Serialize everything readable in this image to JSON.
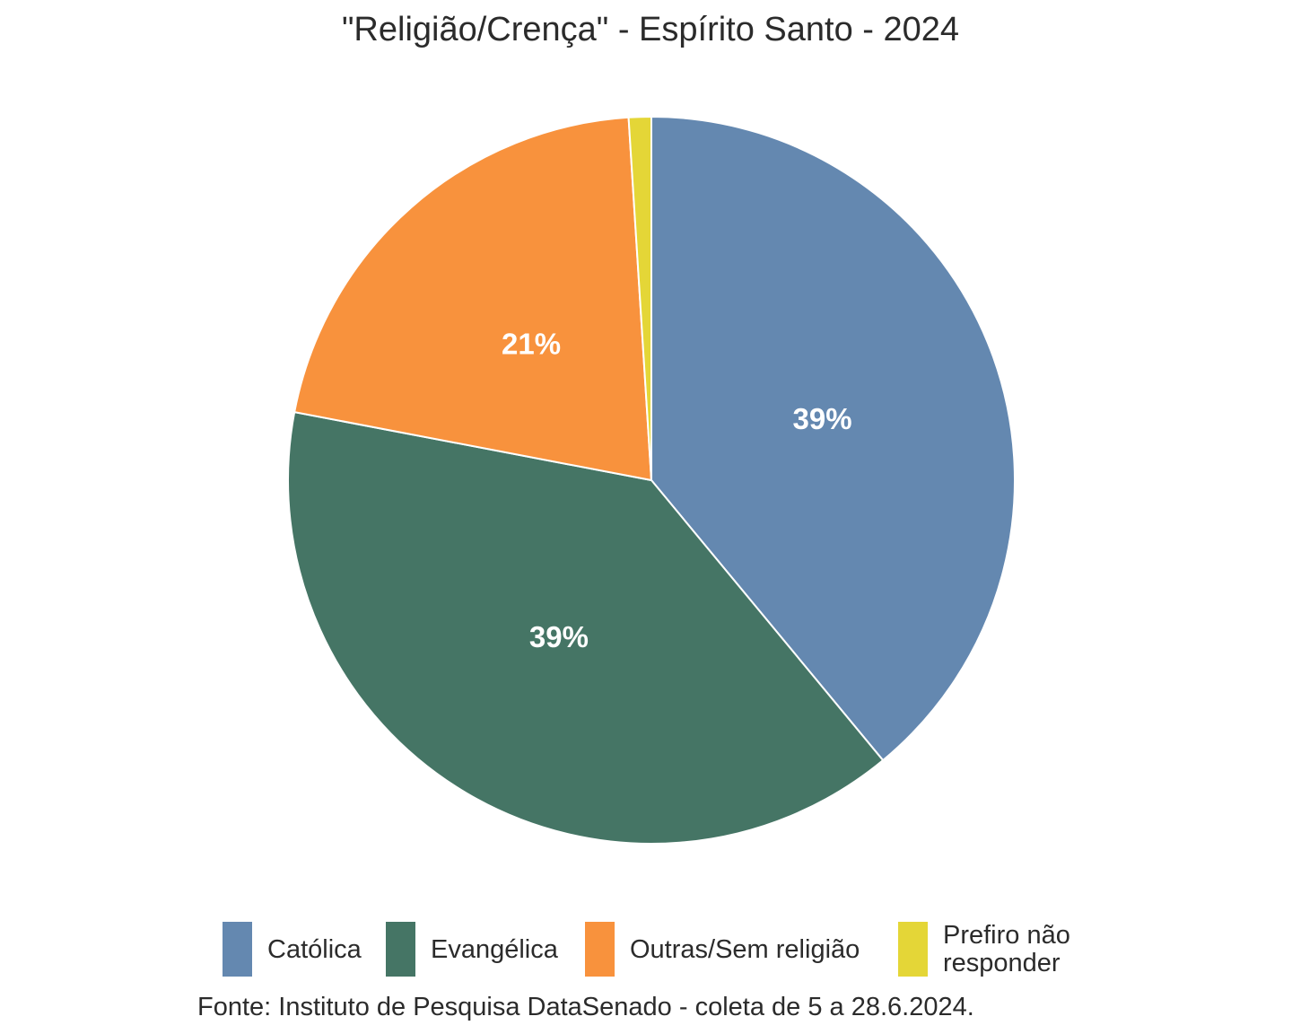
{
  "chart_data": {
    "type": "pie",
    "title": "\"Religião/Crença\" - Espírito Santo - 2024",
    "categories": [
      "Católica",
      "Evangélica",
      "Outras/Sem religião",
      "Prefiro não responder"
    ],
    "legend_lines": [
      [
        "Católica"
      ],
      [
        "Evangélica"
      ],
      [
        "Outras/Sem religião"
      ],
      [
        "Prefiro não",
        "responder"
      ]
    ],
    "values": [
      39,
      39,
      21,
      1
    ],
    "data_labels": [
      "39%",
      "39%",
      "21%",
      ""
    ],
    "colors": [
      "#6488b0",
      "#457565",
      "#f8923d",
      "#e4d637"
    ],
    "legend_placement": "bottom",
    "caption": "Fonte: Instituto de Pesquisa DataSenado - coleta de 5 a 28.6.2024."
  }
}
